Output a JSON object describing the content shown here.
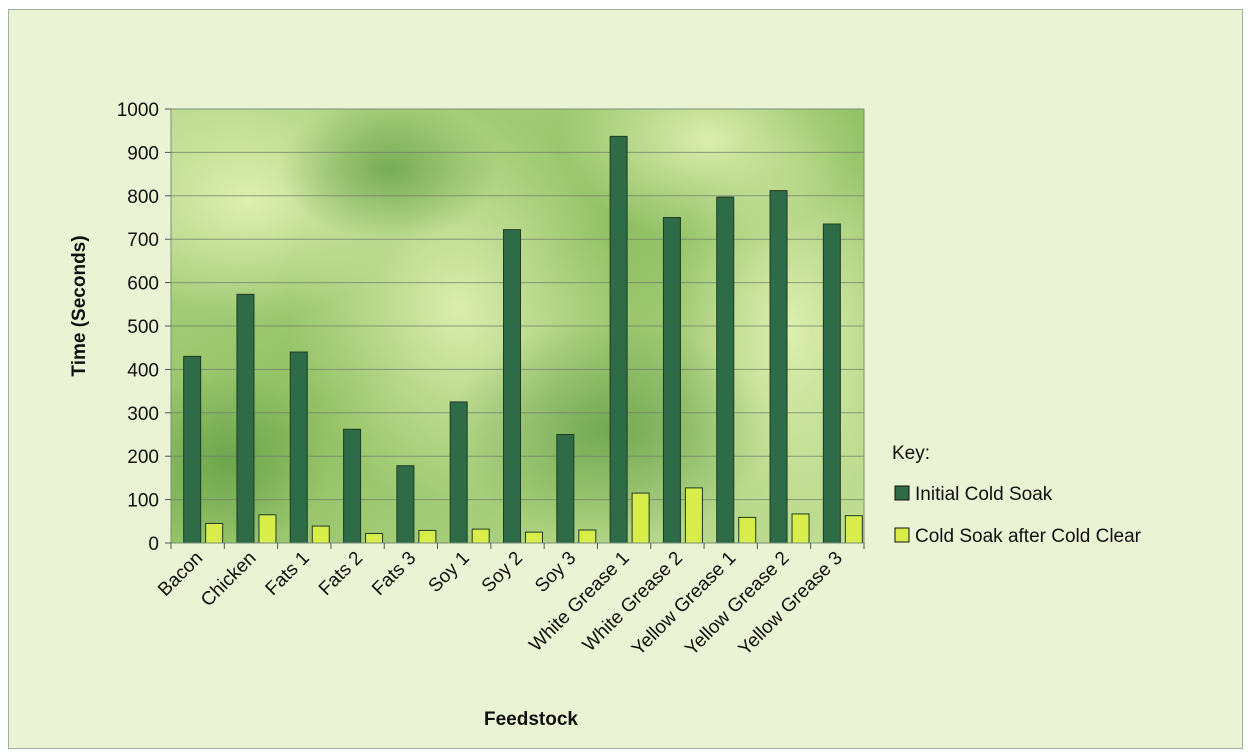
{
  "chart_data": {
    "type": "bar",
    "title": "",
    "xlabel": "Feedstock",
    "ylabel": "Time (Seconds)",
    "ylim": [
      0,
      1000
    ],
    "yticks": [
      0,
      100,
      200,
      300,
      400,
      500,
      600,
      700,
      800,
      900,
      1000
    ],
    "grid": true,
    "legend_title": "Key:",
    "legend_position": "right",
    "categories": [
      "Bacon",
      "Chicken",
      "Fats 1",
      "Fats 2",
      "Fats 3",
      "Soy 1",
      "Soy 2",
      "Soy 3",
      "White Grease 1",
      "White Grease 2",
      "Yellow Grease 1",
      "Yellow Grease 2",
      "Yellow Grease 3"
    ],
    "series": [
      {
        "name": "Initial Cold Soak",
        "color": "#2e6b47",
        "values": [
          430,
          573,
          440,
          262,
          178,
          325,
          722,
          250,
          937,
          750,
          797,
          812,
          735
        ]
      },
      {
        "name": "Cold Soak after Cold Clear",
        "color": "#d8ec4a",
        "values": [
          45,
          65,
          39,
          22,
          29,
          32,
          25,
          30,
          115,
          127,
          59,
          67,
          63
        ]
      }
    ]
  }
}
